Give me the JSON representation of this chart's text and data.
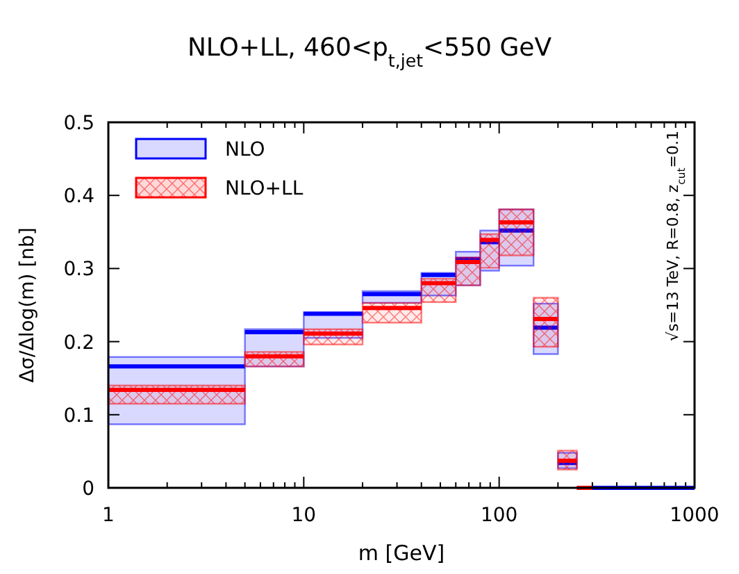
{
  "chart_data": {
    "type": "step",
    "title": "NLO+LL, 460<p$_{t,jet}$<550 GeV",
    "xlabel": "m [GeV]",
    "ylabel": "Δσ/Δlog(m) [nb]",
    "log": "x",
    "legend": "top left",
    "grid": false,
    "series": [
      {
        "name": "NLO",
        "color": "#0000ff",
        "x": [
          1,
          5,
          5,
          10,
          10,
          20,
          20,
          40,
          40,
          60,
          60,
          80,
          80,
          100,
          100,
          150,
          150,
          200,
          200,
          250,
          250,
          1000
        ],
        "values": [
          0.166,
          0.166,
          0.213,
          0.213,
          0.238,
          0.238,
          0.265,
          0.265,
          0.291,
          0.291,
          0.313,
          0.313,
          0.336,
          0.336,
          0.352,
          0.352,
          0.219,
          0.219,
          0.034,
          0.034,
          0,
          0
        ],
        "lower": [
          0.087,
          0.087,
          0.166,
          0.166,
          0.205,
          0.205,
          0.253,
          0.253,
          0.263,
          0.263,
          0.277,
          0.277,
          0.297,
          0.297,
          0.304,
          0.304,
          0.183,
          0.183,
          0.027,
          0.027,
          null,
          null
        ],
        "upper": [
          0.179,
          0.179,
          0.217,
          0.217,
          0.24,
          0.24,
          0.269,
          0.269,
          0.294,
          0.294,
          0.323,
          0.323,
          0.352,
          0.352,
          0.381,
          0.381,
          0.252,
          0.252,
          0.048,
          0.048,
          null,
          null
        ]
      },
      {
        "name": "NLO+LL",
        "color": "#ff0000",
        "x": [
          1,
          5,
          5,
          10,
          10,
          20,
          20,
          40,
          40,
          60,
          60,
          80,
          80,
          100,
          100,
          150,
          150,
          200,
          200,
          250,
          250,
          300
        ],
        "values": [
          0.134,
          0.134,
          0.18,
          0.18,
          0.211,
          0.211,
          0.246,
          0.246,
          0.28,
          0.28,
          0.309,
          0.309,
          0.339,
          0.339,
          0.363,
          0.363,
          0.231,
          0.231,
          0.037,
          0.037,
          0,
          0
        ],
        "lower": [
          0.115,
          0.115,
          0.166,
          0.166,
          0.196,
          0.196,
          0.226,
          0.226,
          0.254,
          0.254,
          0.277,
          0.277,
          0.301,
          0.301,
          0.318,
          0.318,
          0.193,
          0.193,
          0.025,
          0.025,
          null,
          null
        ],
        "upper": [
          0.14,
          0.14,
          0.186,
          0.186,
          0.217,
          0.217,
          0.253,
          0.253,
          0.286,
          0.286,
          0.315,
          0.315,
          0.347,
          0.347,
          0.381,
          0.381,
          0.26,
          0.26,
          0.051,
          0.051,
          null,
          null
        ]
      }
    ],
    "xlim": [
      1,
      1000
    ],
    "ylim": [
      0,
      0.5
    ],
    "xticks": [
      1,
      {
        "value": 2,
        "label": null
      },
      {
        "value": 3,
        "label": null
      },
      {
        "value": 4,
        "label": null
      },
      {
        "value": 5,
        "label": null
      },
      {
        "value": 6,
        "label": null
      },
      {
        "value": 7,
        "label": null
      },
      {
        "value": 8,
        "label": null
      },
      {
        "value": 9,
        "label": null
      },
      10,
      {
        "value": 20,
        "label": null
      },
      {
        "value": 30,
        "label": null
      },
      {
        "value": 40,
        "label": null
      },
      {
        "value": 50,
        "label": null
      },
      {
        "value": 60,
        "label": null
      },
      {
        "value": 70,
        "label": null
      },
      {
        "value": 80,
        "label": null
      },
      {
        "value": 90,
        "label": null
      },
      100,
      {
        "value": 200,
        "label": null
      },
      {
        "value": 300,
        "label": null
      },
      {
        "value": 400,
        "label": null
      },
      {
        "value": 500,
        "label": null
      },
      {
        "value": 600,
        "label": null
      },
      {
        "value": 700,
        "label": null
      },
      {
        "value": 800,
        "label": null
      },
      {
        "value": 900,
        "label": null
      },
      1000
    ],
    "yticks": [
      0,
      0.1,
      0.2,
      0.3,
      0.4,
      0.5
    ],
    "annotations": [
      "√s=13 TeV, R=0.8, z$_{cut}$=0.1"
    ]
  }
}
